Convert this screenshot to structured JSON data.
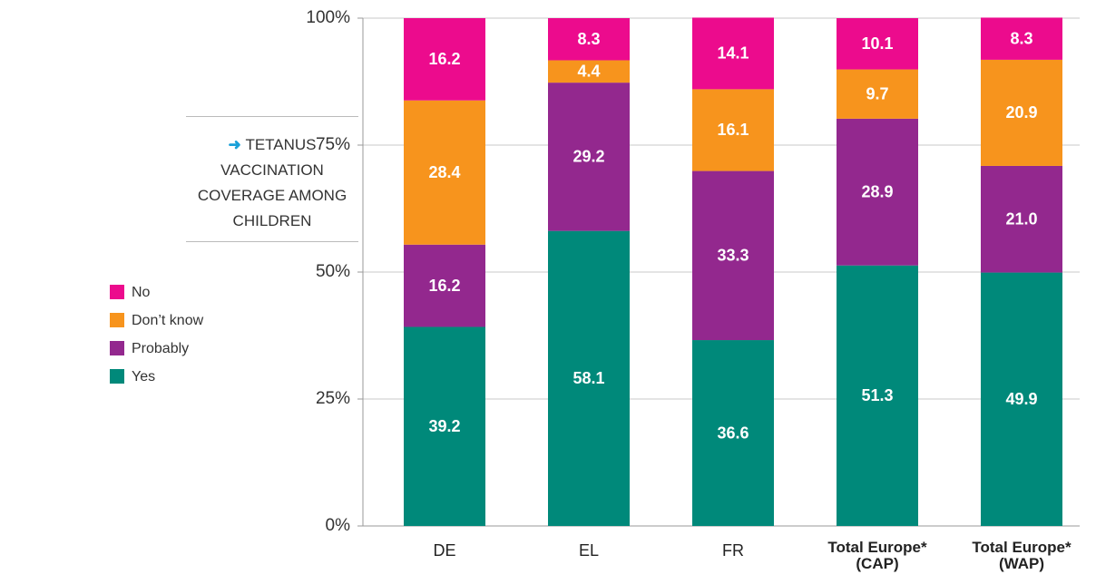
{
  "chart_data": {
    "type": "stacked_bar",
    "title": "TETANUS VACCINATION COVERAGE AMONG CHILDREN",
    "categories": [
      "DE",
      "EL",
      "FR",
      "Total Europe* (CAP)",
      "Total Europe* (WAP)"
    ],
    "series": [
      {
        "name": "Yes",
        "color": "#00897a",
        "values": [
          39.2,
          58.1,
          36.6,
          51.3,
          49.9
        ],
        "value_labels": [
          "39.2",
          "58.1",
          "36.6",
          "51.3",
          "49.9"
        ]
      },
      {
        "name": "Probably",
        "color": "#93288e",
        "values": [
          16.2,
          29.2,
          33.3,
          28.9,
          21.0
        ],
        "value_labels": [
          "16.2",
          "29.2",
          "33.3",
          "28.9",
          "21.0"
        ]
      },
      {
        "name": "Don’t know",
        "color": "#f7941d",
        "values": [
          28.4,
          4.4,
          16.1,
          9.7,
          20.9
        ],
        "value_labels": [
          "28.4",
          "4.4",
          "16.1",
          "9.7",
          "20.9"
        ]
      },
      {
        "name": "No",
        "color": "#ec0b8d",
        "values": [
          16.2,
          8.3,
          14.1,
          10.1,
          8.3
        ],
        "value_labels": [
          "16.2",
          "8.3",
          "14.1",
          "10.1",
          "8.3"
        ]
      }
    ],
    "ylim": [
      0,
      100
    ],
    "yticks": [
      {
        "value": 0,
        "label": "0%"
      },
      {
        "value": 25,
        "label": "25%"
      },
      {
        "value": 50,
        "label": "50%"
      },
      {
        "value": 75,
        "label": "75%"
      },
      {
        "value": 100,
        "label": "100%"
      }
    ],
    "grid": true
  }
}
